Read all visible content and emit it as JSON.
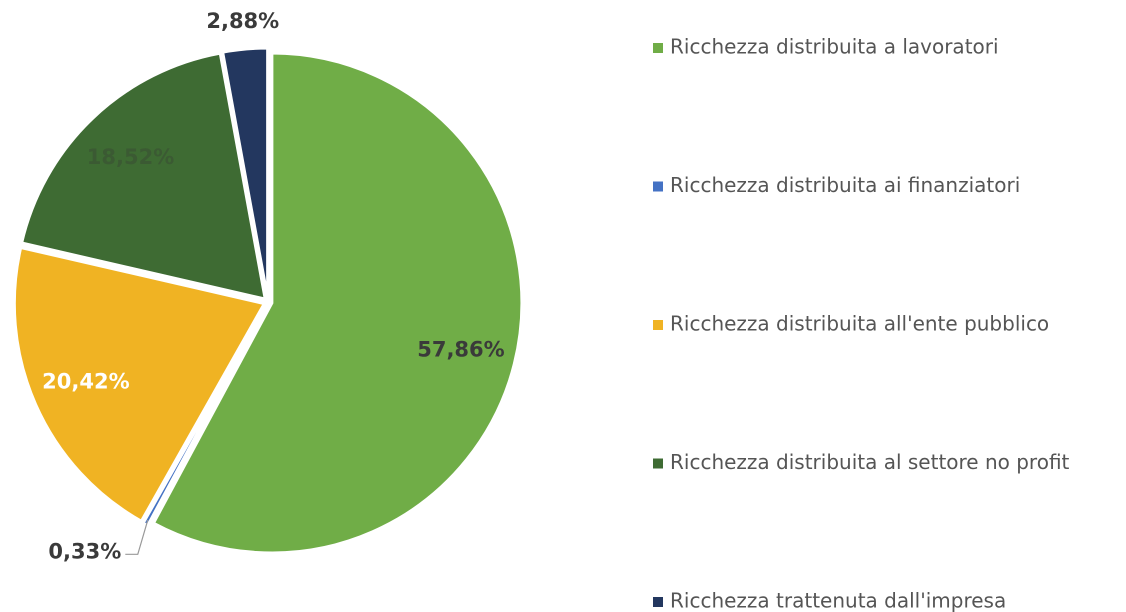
{
  "chart_data": {
    "type": "pie",
    "categories": [
      "Ricchezza distribuita a lavoratori",
      "Ricchezza distribuita ai finanziatori",
      "Ricchezza distribuita all'ente pubblico",
      "Ricchezza distribuita al settore no profit",
      "Ricchezza trattenuta dall'impresa"
    ],
    "values": [
      57.86,
      0.33,
      20.42,
      18.52,
      2.88
    ],
    "value_labels": [
      "57,86%",
      "0,33%",
      "20,42%",
      "18,52%",
      "2,88%"
    ],
    "colors": [
      "#70ad47",
      "#4472c4",
      "#f0b323",
      "#3e6b33",
      "#23375f"
    ],
    "legend": "right"
  }
}
